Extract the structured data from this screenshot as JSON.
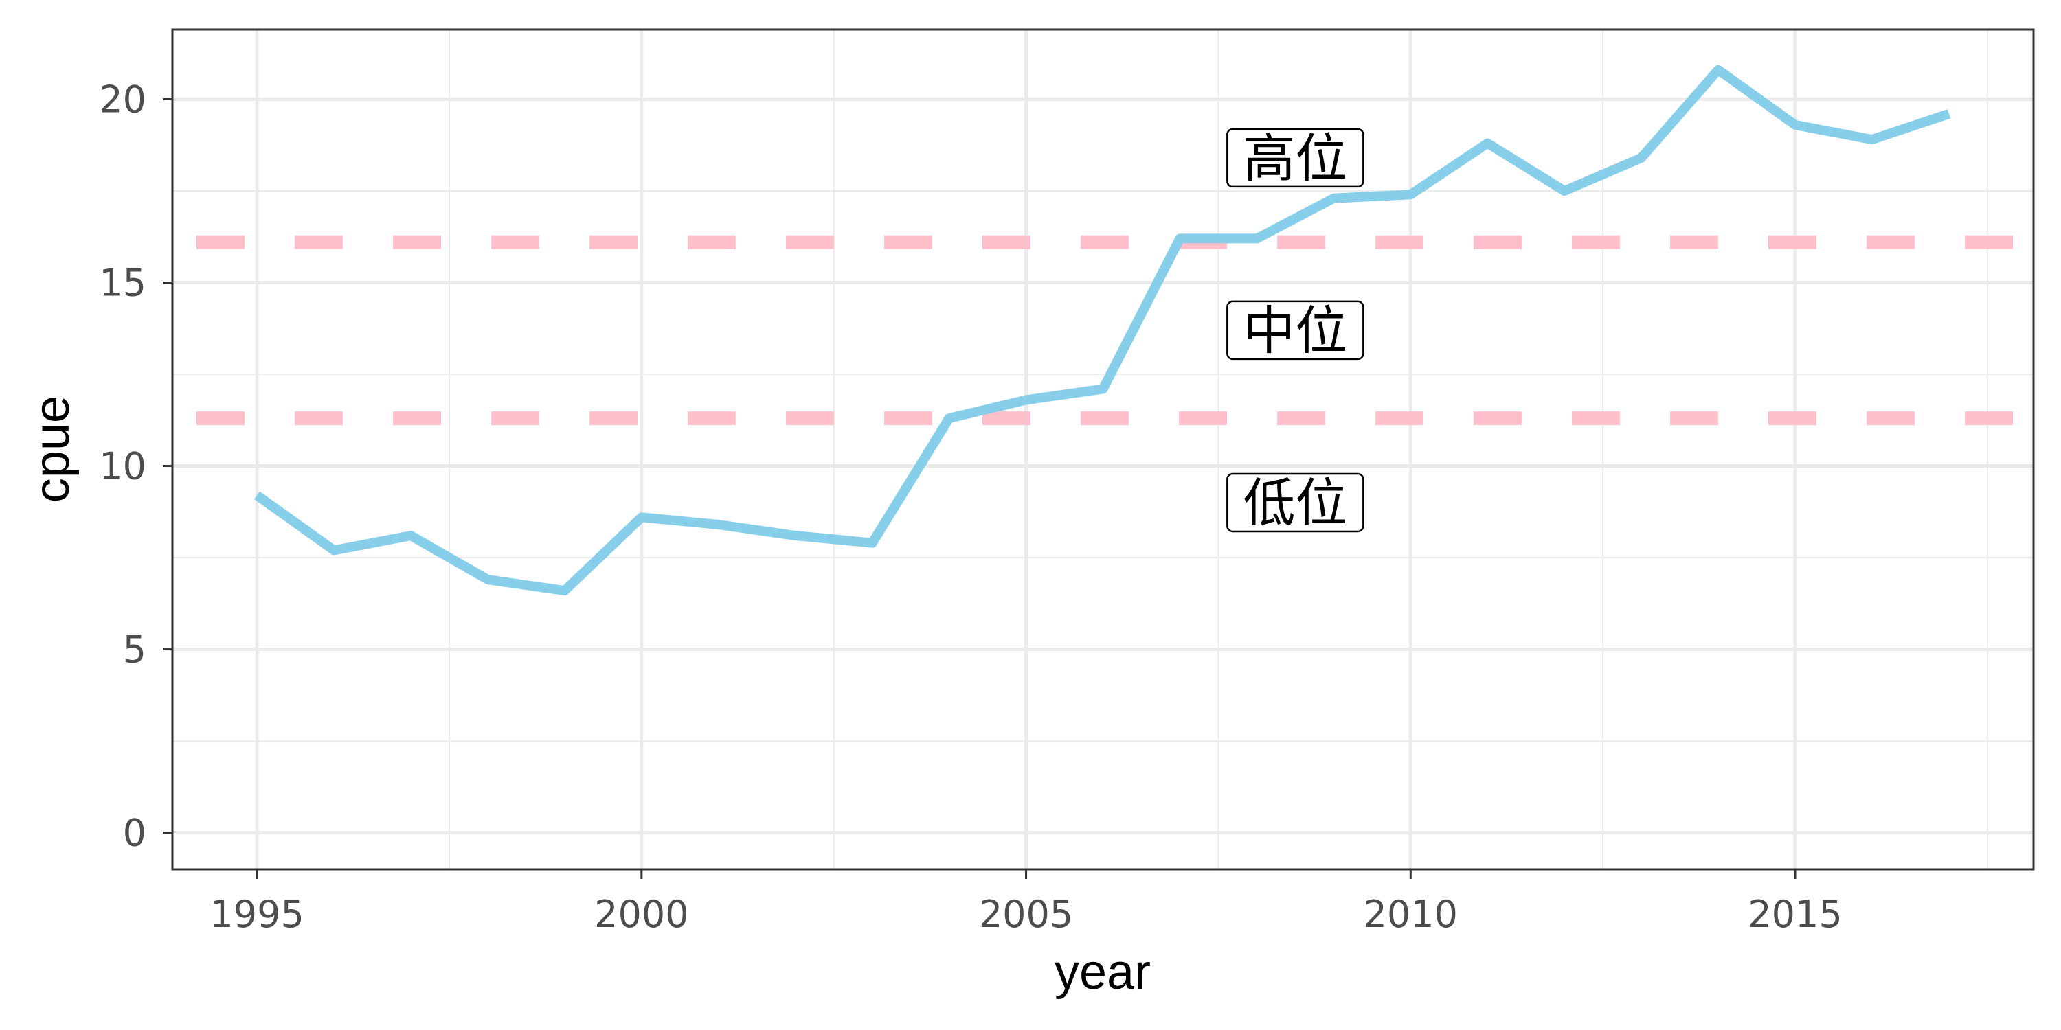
{
  "chart_data": {
    "type": "line",
    "xlabel": "year",
    "ylabel": "cpue",
    "xlim": [
      1993.9,
      2018.1
    ],
    "ylim": [
      -1.0,
      21.9
    ],
    "x_ticks": [
      1995,
      2000,
      2005,
      2010,
      2015
    ],
    "y_ticks": [
      0,
      5,
      10,
      15,
      20
    ],
    "grid": true,
    "legend": "none",
    "series": [
      {
        "color": "#87CEEB",
        "x": [
          1995,
          1996,
          1997,
          1998,
          1999,
          2000,
          2001,
          2002,
          2003,
          2004,
          2005,
          2006,
          2007,
          2008,
          2009,
          2010,
          2011,
          2012,
          2013,
          2014,
          2015,
          2016,
          2017
        ],
        "y": [
          9.2,
          7.7,
          8.1,
          6.9,
          6.6,
          8.6,
          8.4,
          8.1,
          7.9,
          11.3,
          11.8,
          12.1,
          16.2,
          16.2,
          17.3,
          17.4,
          18.8,
          17.5,
          18.4,
          20.8,
          19.3,
          18.9,
          19.6
        ]
      }
    ],
    "thresholds": [
      {
        "y": 11.3,
        "color": "#FFC0CB",
        "style": "dashed"
      },
      {
        "y": 16.1,
        "color": "#FFC0CB",
        "style": "dashed"
      }
    ],
    "annotations": [
      {
        "text": "高位",
        "x": 2008.5,
        "y": 18.4
      },
      {
        "text": "中位",
        "x": 2008.5,
        "y": 13.7
      },
      {
        "text": "低位",
        "x": 2008.5,
        "y": 9.0
      }
    ]
  }
}
